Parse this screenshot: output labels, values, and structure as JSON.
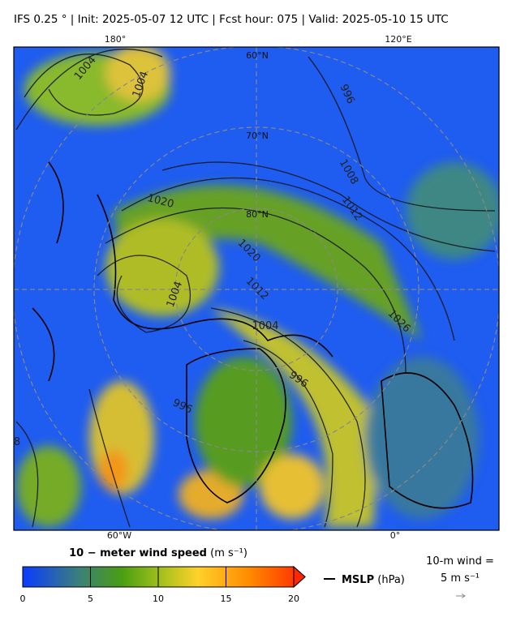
{
  "header": {
    "title": "IFS 0.25 °  |  Init: 2025-05-07 12 UTC  |  Fcst hour: 075  |  Valid: 2025-05-10 15 UTC"
  },
  "map": {
    "lon_labels_top": [
      "180°",
      "120°E"
    ],
    "lon_labels_bottom": [
      "60°W",
      "0°"
    ],
    "lat_labels": [
      "60°N",
      "70°N",
      "80°N"
    ],
    "isobar_labels": [
      "1004",
      "1004",
      "996",
      "1008",
      "1012",
      "1020",
      "1020",
      "1012",
      "1004",
      "1004",
      "1026",
      "996",
      "996",
      "8"
    ]
  },
  "colorbar": {
    "label": "10 − meter wind speed",
    "units": "(m s⁻¹)",
    "range": [
      0,
      20
    ],
    "ticks": [
      0,
      5,
      10,
      15,
      20
    ]
  },
  "legend": {
    "mslp": "MSLP",
    "mslp_units": "(hPa)",
    "wind_ref_label": "10-m wind =",
    "wind_ref_value": "5 m s⁻¹"
  }
}
